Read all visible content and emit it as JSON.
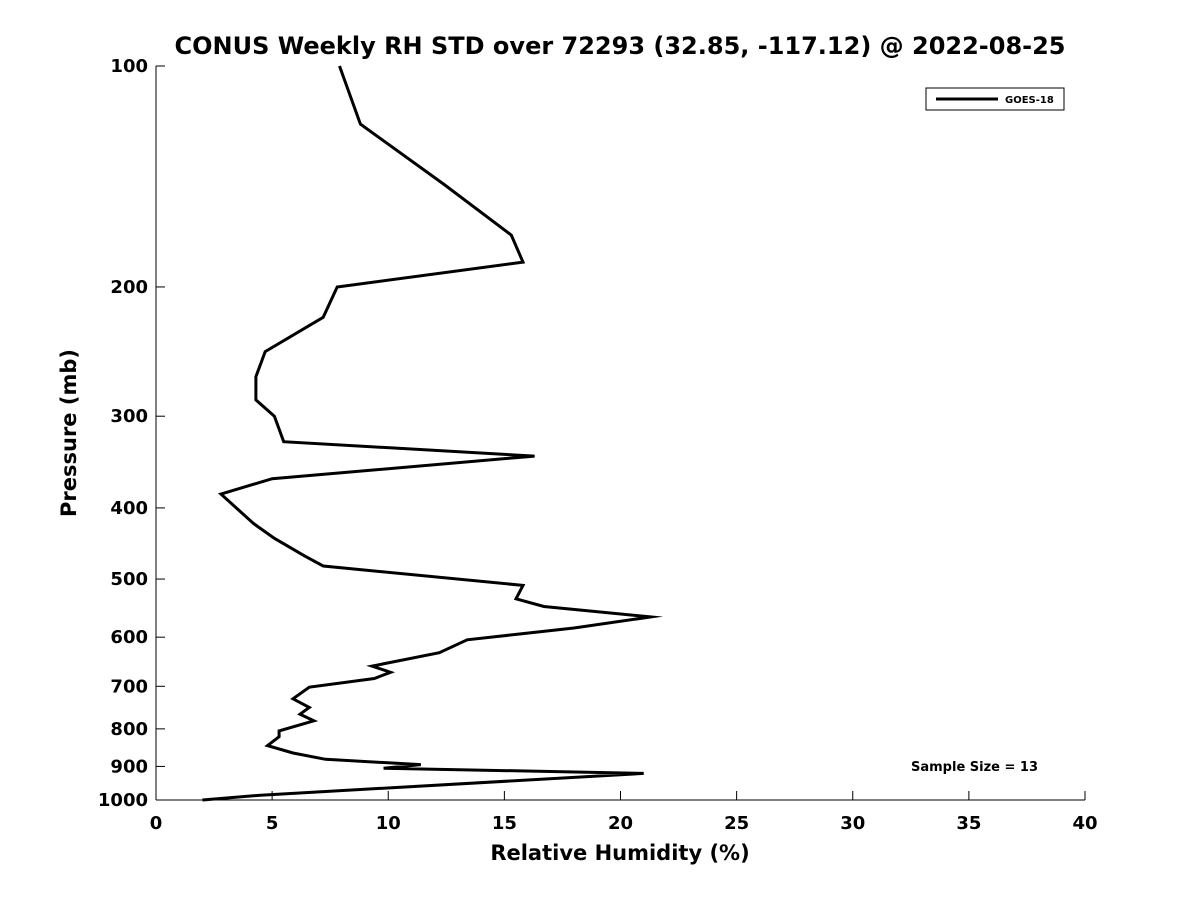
{
  "chart_data": {
    "type": "line",
    "title": "CONUS Weekly RH STD over 72293 (32.85, -117.12) @ 2022-08-25",
    "xlabel": "Relative Humidity (%)",
    "ylabel": "Pressure (mb)",
    "xlim": [
      0,
      40
    ],
    "ylim": [
      1000,
      100
    ],
    "yscale": "log",
    "y_inverted": true,
    "xticks": [
      0,
      5,
      10,
      15,
      20,
      25,
      30,
      35,
      40
    ],
    "yticks": [
      100,
      200,
      300,
      400,
      500,
      600,
      700,
      800,
      900,
      1000
    ],
    "grid": false,
    "legend": {
      "location": "top-right",
      "entries": [
        "GOES-18"
      ]
    },
    "annotation": "Sample Size = 13",
    "series": [
      {
        "name": "GOES-18",
        "color": "#000000",
        "x": [
          7.9,
          8.8,
          12.4,
          15.3,
          15.8,
          7.8,
          7.2,
          4.7,
          4.3,
          4.3,
          5.1,
          5.5,
          16.3,
          5.0,
          2.8,
          4.2,
          5.1,
          6.4,
          7.2,
          15.8,
          15.5,
          16.7,
          21.3,
          18.0,
          13.4,
          12.2,
          9.3,
          10.1,
          9.4,
          6.6,
          5.9,
          6.6,
          6.2,
          6.8,
          5.3,
          5.3,
          4.8,
          5.9,
          7.3,
          11.4,
          9.8,
          21.0,
          4.5,
          2.0
        ],
        "y": [
          100,
          120,
          145,
          170,
          185,
          200,
          220,
          245,
          265,
          285,
          300,
          325,
          340,
          365,
          383,
          420,
          440,
          465,
          480,
          510,
          532,
          545,
          563,
          583,
          605,
          630,
          657,
          670,
          683,
          702,
          728,
          748,
          764,
          780,
          805,
          820,
          843,
          863,
          880,
          895,
          905,
          920,
          985,
          1000
        ]
      }
    ]
  }
}
